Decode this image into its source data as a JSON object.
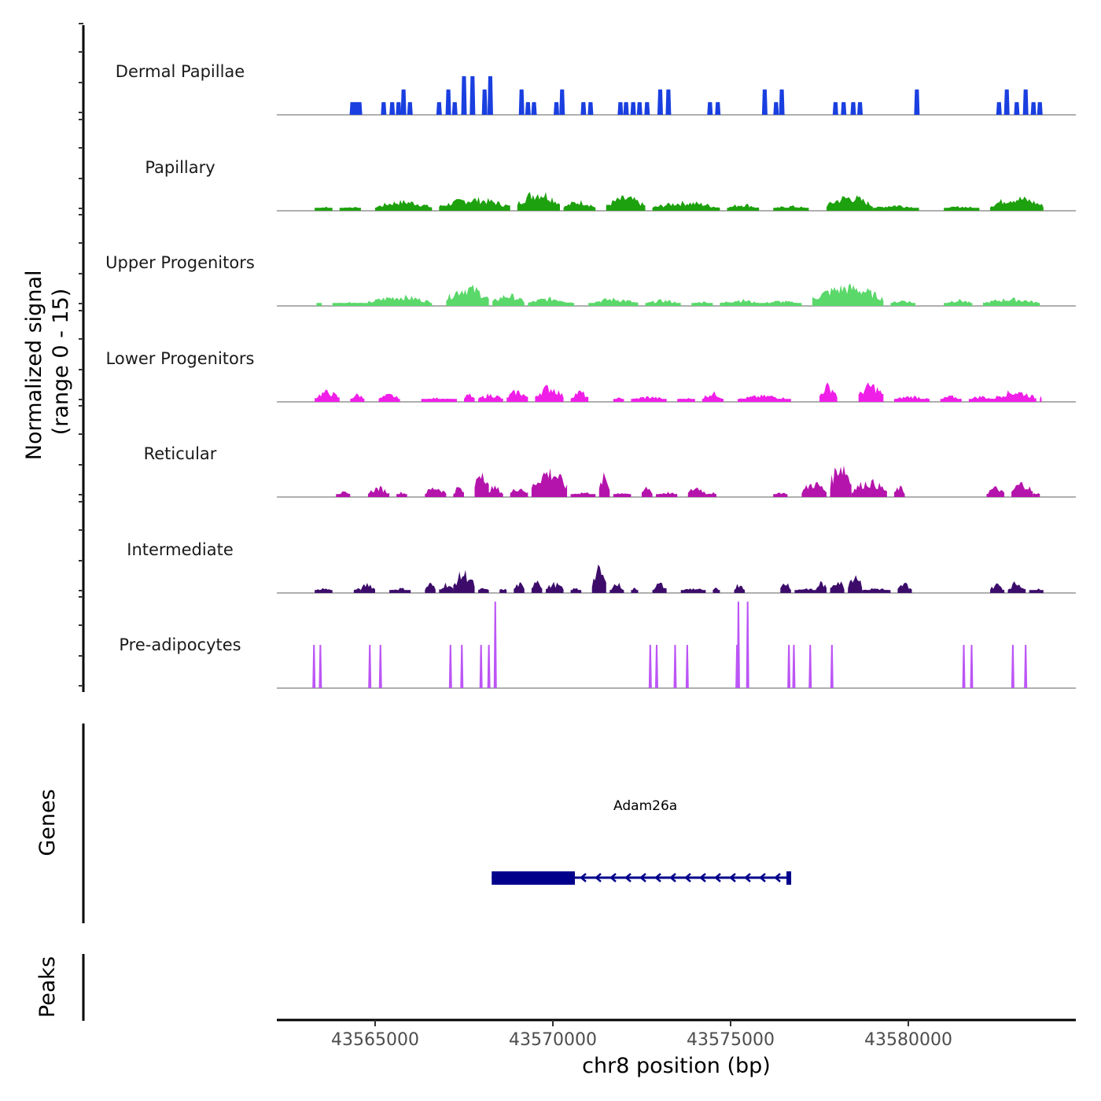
{
  "chart_data": {
    "type": "area",
    "title": "",
    "xlabel": "chr8 position (bp)",
    "ylabel": "Normalized signal\n(range 0 - 15)",
    "ylabel_lines": [
      "Normalized signal",
      "(range 0 - 15)"
    ],
    "ylim": [
      0,
      15
    ],
    "xlim": [
      43562235,
      43584712
    ],
    "x_ticks": [
      43565000,
      43570000,
      43575000,
      43580000
    ],
    "x_tick_labels": [
      "43565000",
      "43570000",
      "43575000",
      "43580000"
    ],
    "grid": false,
    "legend": "none",
    "series": [
      {
        "name": "Dermal Papillae",
        "color": "#1A3FE0",
        "style": "step",
        "peaks": [
          [
            43564360,
            2.2
          ],
          [
            43564460,
            2.2
          ],
          [
            43564560,
            2.2
          ],
          [
            43565240,
            2.2
          ],
          [
            43565480,
            2.2
          ],
          [
            43565660,
            2.2
          ],
          [
            43565800,
            4.4
          ],
          [
            43565980,
            2.2
          ],
          [
            43566800,
            2.2
          ],
          [
            43567060,
            4.4
          ],
          [
            43567240,
            2.2
          ],
          [
            43567500,
            6.7
          ],
          [
            43567740,
            6.7
          ],
          [
            43568080,
            4.4
          ],
          [
            43568240,
            6.7
          ],
          [
            43569120,
            4.4
          ],
          [
            43569300,
            2.2
          ],
          [
            43569470,
            2.2
          ],
          [
            43570100,
            2.2
          ],
          [
            43570260,
            4.4
          ],
          [
            43570860,
            2.2
          ],
          [
            43571060,
            2.2
          ],
          [
            43571900,
            2.2
          ],
          [
            43572060,
            2.2
          ],
          [
            43572260,
            2.2
          ],
          [
            43572440,
            2.2
          ],
          [
            43572650,
            2.2
          ],
          [
            43573020,
            4.4
          ],
          [
            43573250,
            4.4
          ],
          [
            43574420,
            2.2
          ],
          [
            43574640,
            2.2
          ],
          [
            43575960,
            4.4
          ],
          [
            43576280,
            2.2
          ],
          [
            43576440,
            4.4
          ],
          [
            43577950,
            2.2
          ],
          [
            43578180,
            2.2
          ],
          [
            43578450,
            2.2
          ],
          [
            43578640,
            2.2
          ],
          [
            43580240,
            4.4
          ],
          [
            43582550,
            2.2
          ],
          [
            43582770,
            4.4
          ],
          [
            43583050,
            2.2
          ],
          [
            43583300,
            4.4
          ],
          [
            43583520,
            2.2
          ],
          [
            43583700,
            2.2
          ]
        ]
      },
      {
        "name": "Papillary",
        "color": "#1DA10E",
        "style": "jagged",
        "regions": [
          [
            43563300,
            43563800,
            0.8
          ],
          [
            43564000,
            43564600,
            0.8
          ],
          [
            43565000,
            43566600,
            2.0
          ],
          [
            43566800,
            43568800,
            2.5
          ],
          [
            43569000,
            43570200,
            4.0
          ],
          [
            43570300,
            43571200,
            2.0
          ],
          [
            43571500,
            43572600,
            2.8
          ],
          [
            43572800,
            43574700,
            1.8
          ],
          [
            43574900,
            43575800,
            1.4
          ],
          [
            43576200,
            43577200,
            1.0
          ],
          [
            43577700,
            43579000,
            3.0
          ],
          [
            43579000,
            43580300,
            1.2
          ],
          [
            43581000,
            43582000,
            0.9
          ],
          [
            43582300,
            43583800,
            2.8
          ]
        ]
      },
      {
        "name": "Upper Progenitors",
        "color": "#5AD86A",
        "style": "jagged",
        "regions": [
          [
            43563350,
            43563500,
            0.6
          ],
          [
            43563800,
            43564800,
            0.8
          ],
          [
            43564800,
            43566600,
            2.0
          ],
          [
            43567000,
            43568200,
            4.0
          ],
          [
            43568300,
            43569200,
            2.3
          ],
          [
            43569300,
            43570600,
            1.6
          ],
          [
            43571000,
            43572400,
            1.5
          ],
          [
            43572600,
            43573600,
            1.2
          ],
          [
            43573900,
            43574500,
            0.9
          ],
          [
            43574700,
            43575800,
            1.3
          ],
          [
            43575800,
            43577000,
            1.0
          ],
          [
            43577300,
            43579300,
            4.1
          ],
          [
            43579500,
            43580200,
            1.2
          ],
          [
            43581000,
            43581800,
            1.3
          ],
          [
            43582100,
            43583700,
            1.5
          ]
        ]
      },
      {
        "name": "Lower Progenitors",
        "color": "#F01FE8",
        "style": "jagged",
        "regions": [
          [
            43563300,
            43564000,
            2.2
          ],
          [
            43564300,
            43564700,
            1.6
          ],
          [
            43565100,
            43565700,
            1.5
          ],
          [
            43566300,
            43567300,
            0.8
          ],
          [
            43567500,
            43567800,
            1.6
          ],
          [
            43567900,
            43568600,
            1.6
          ],
          [
            43568700,
            43569300,
            2.3
          ],
          [
            43569500,
            43570300,
            3.2
          ],
          [
            43570500,
            43571000,
            2.2
          ],
          [
            43571700,
            43572000,
            0.8
          ],
          [
            43572200,
            43573200,
            1.1
          ],
          [
            43573500,
            43574000,
            0.8
          ],
          [
            43574200,
            43574800,
            1.9
          ],
          [
            43575200,
            43576700,
            1.3
          ],
          [
            43577500,
            43578000,
            3.5
          ],
          [
            43578600,
            43579300,
            3.6
          ],
          [
            43579600,
            43580600,
            1.2
          ],
          [
            43580900,
            43581500,
            1.2
          ],
          [
            43581700,
            43582400,
            1.2
          ],
          [
            43582400,
            43583600,
            2.2
          ],
          [
            43583700,
            43583750,
            2.2
          ]
        ]
      },
      {
        "name": "Reticular",
        "color": "#B514AC",
        "style": "jagged",
        "regions": [
          [
            43563900,
            43564300,
            1.0
          ],
          [
            43564800,
            43565400,
            2.0
          ],
          [
            43565600,
            43565900,
            1.0
          ],
          [
            43566400,
            43567000,
            2.1
          ],
          [
            43567200,
            43567500,
            2.1
          ],
          [
            43567800,
            43568200,
            6.2
          ],
          [
            43568100,
            43568600,
            2.1
          ],
          [
            43568800,
            43569300,
            2.1
          ],
          [
            43569400,
            43570400,
            5.6
          ],
          [
            43570500,
            43571200,
            1.0
          ],
          [
            43571300,
            43571600,
            4.4
          ],
          [
            43571700,
            43572200,
            1.0
          ],
          [
            43572500,
            43572800,
            2.1
          ],
          [
            43572900,
            43573500,
            1.0
          ],
          [
            43573800,
            43574300,
            2.1
          ],
          [
            43574300,
            43574600,
            1.0
          ],
          [
            43576200,
            43576600,
            1.0
          ],
          [
            43577000,
            43577700,
            3.0
          ],
          [
            43577800,
            43578400,
            7.3
          ],
          [
            43578400,
            43579400,
            3.3
          ],
          [
            43579600,
            43579900,
            2.1
          ],
          [
            43582200,
            43582700,
            2.0
          ],
          [
            43582900,
            43583500,
            3.0
          ],
          [
            43583500,
            43583700,
            1.0
          ]
        ]
      },
      {
        "name": "Intermediate",
        "color": "#3D0C6B",
        "style": "jagged",
        "regions": [
          [
            43563300,
            43563800,
            1.0
          ],
          [
            43564400,
            43564600,
            1.0
          ],
          [
            43564600,
            43565000,
            2.0
          ],
          [
            43565400,
            43566000,
            1.0
          ],
          [
            43566400,
            43566700,
            2.0
          ],
          [
            43566800,
            43567200,
            2.0
          ],
          [
            43567200,
            43567800,
            4.3
          ],
          [
            43567900,
            43568200,
            1.0
          ],
          [
            43568500,
            43568700,
            1.0
          ],
          [
            43568900,
            43569200,
            2.0
          ],
          [
            43569400,
            43569700,
            3.2
          ],
          [
            43569800,
            43570300,
            2.0
          ],
          [
            43570500,
            43570800,
            1.0
          ],
          [
            43571100,
            43571500,
            5.0
          ],
          [
            43571600,
            43572000,
            2.0
          ],
          [
            43572200,
            43572400,
            1.0
          ],
          [
            43572800,
            43573200,
            2.0
          ],
          [
            43573600,
            43574300,
            1.0
          ],
          [
            43574500,
            43574700,
            1.0
          ],
          [
            43575100,
            43575400,
            2.0
          ],
          [
            43576400,
            43576700,
            2.3
          ],
          [
            43576800,
            43577400,
            1.0
          ],
          [
            43577400,
            43577700,
            2.3
          ],
          [
            43577800,
            43578200,
            2.8
          ],
          [
            43578300,
            43578700,
            4.3
          ],
          [
            43578700,
            43579500,
            1.0
          ],
          [
            43579700,
            43580100,
            2.0
          ],
          [
            43582300,
            43582700,
            1.9
          ],
          [
            43582800,
            43583300,
            2.2
          ],
          [
            43583400,
            43583800,
            1.0
          ]
        ]
      },
      {
        "name": "Pre-adipocytes",
        "color": "#BC55F5",
        "style": "spike",
        "peaks": [
          [
            43563280,
            7.5
          ],
          [
            43563460,
            7.5
          ],
          [
            43564850,
            7.5
          ],
          [
            43565150,
            7.5
          ],
          [
            43567120,
            7.5
          ],
          [
            43567440,
            7.5
          ],
          [
            43567980,
            7.5
          ],
          [
            43568200,
            7.5
          ],
          [
            43568380,
            15
          ],
          [
            43572740,
            7.5
          ],
          [
            43572920,
            7.5
          ],
          [
            43573440,
            7.5
          ],
          [
            43573780,
            7.5
          ],
          [
            43575180,
            7.5
          ],
          [
            43575220,
            15
          ],
          [
            43575480,
            15
          ],
          [
            43576640,
            7.5
          ],
          [
            43576780,
            7.5
          ],
          [
            43577240,
            7.5
          ],
          [
            43577850,
            7.5
          ],
          [
            43581560,
            7.5
          ],
          [
            43581780,
            7.5
          ],
          [
            43582940,
            7.5
          ],
          [
            43583300,
            7.5
          ]
        ]
      }
    ],
    "genes_track": {
      "label": "Genes",
      "genes": [
        {
          "name": "Adam26a",
          "start": 43568280,
          "end": 43576660,
          "strand": "-",
          "thick_start": 43568280,
          "thick_end": 43570620,
          "color": "#00008B"
        }
      ]
    },
    "peaks_track": {
      "label": "Peaks",
      "peaks": []
    }
  }
}
